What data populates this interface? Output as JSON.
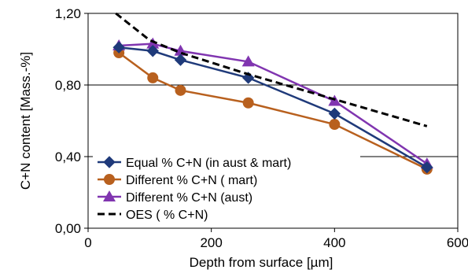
{
  "chart_data": {
    "type": "line",
    "title": "",
    "xlabel": "Depth from surface [µm]",
    "ylabel": "C+N content [Mass.-%]",
    "xlim": [
      0,
      600
    ],
    "ylim": [
      0,
      1.2
    ],
    "x_ticks": [
      0,
      200,
      400,
      600
    ],
    "x_tick_labels": [
      "0",
      "200",
      "400",
      "600"
    ],
    "y_ticks": [
      0,
      0.4,
      0.8,
      1.2
    ],
    "y_tick_labels": [
      "0,00",
      "0,40",
      "0,80",
      "1,20"
    ],
    "grid": "horizontal",
    "legend_position": "bottom-left",
    "series": [
      {
        "name": "Equal % C+N (in aust & mart)",
        "color": "#1f3a7a",
        "marker": "diamond",
        "line_style": "solid",
        "x": [
          50,
          105,
          150,
          260,
          400,
          550
        ],
        "y": [
          1.01,
          0.99,
          0.94,
          0.84,
          0.64,
          0.34
        ]
      },
      {
        "name": "Different % C+N ( mart)",
        "color": "#b8601e",
        "marker": "circle",
        "line_style": "solid",
        "x": [
          50,
          105,
          150,
          260,
          400,
          550
        ],
        "y": [
          0.98,
          0.84,
          0.77,
          0.7,
          0.58,
          0.33
        ]
      },
      {
        "name": "Different %  C+N (aust)",
        "color": "#8035b0",
        "marker": "triangle",
        "line_style": "solid",
        "x": [
          50,
          105,
          150,
          260,
          400,
          550
        ],
        "y": [
          1.02,
          1.03,
          0.99,
          0.93,
          0.71,
          0.36
        ]
      },
      {
        "name": "OES ( % C+N)",
        "color": "#000000",
        "marker": "none",
        "line_style": "dashed",
        "x": [
          45,
          100,
          150,
          260,
          400,
          550
        ],
        "y": [
          1.2,
          1.05,
          0.98,
          0.86,
          0.72,
          0.57
        ]
      }
    ]
  }
}
